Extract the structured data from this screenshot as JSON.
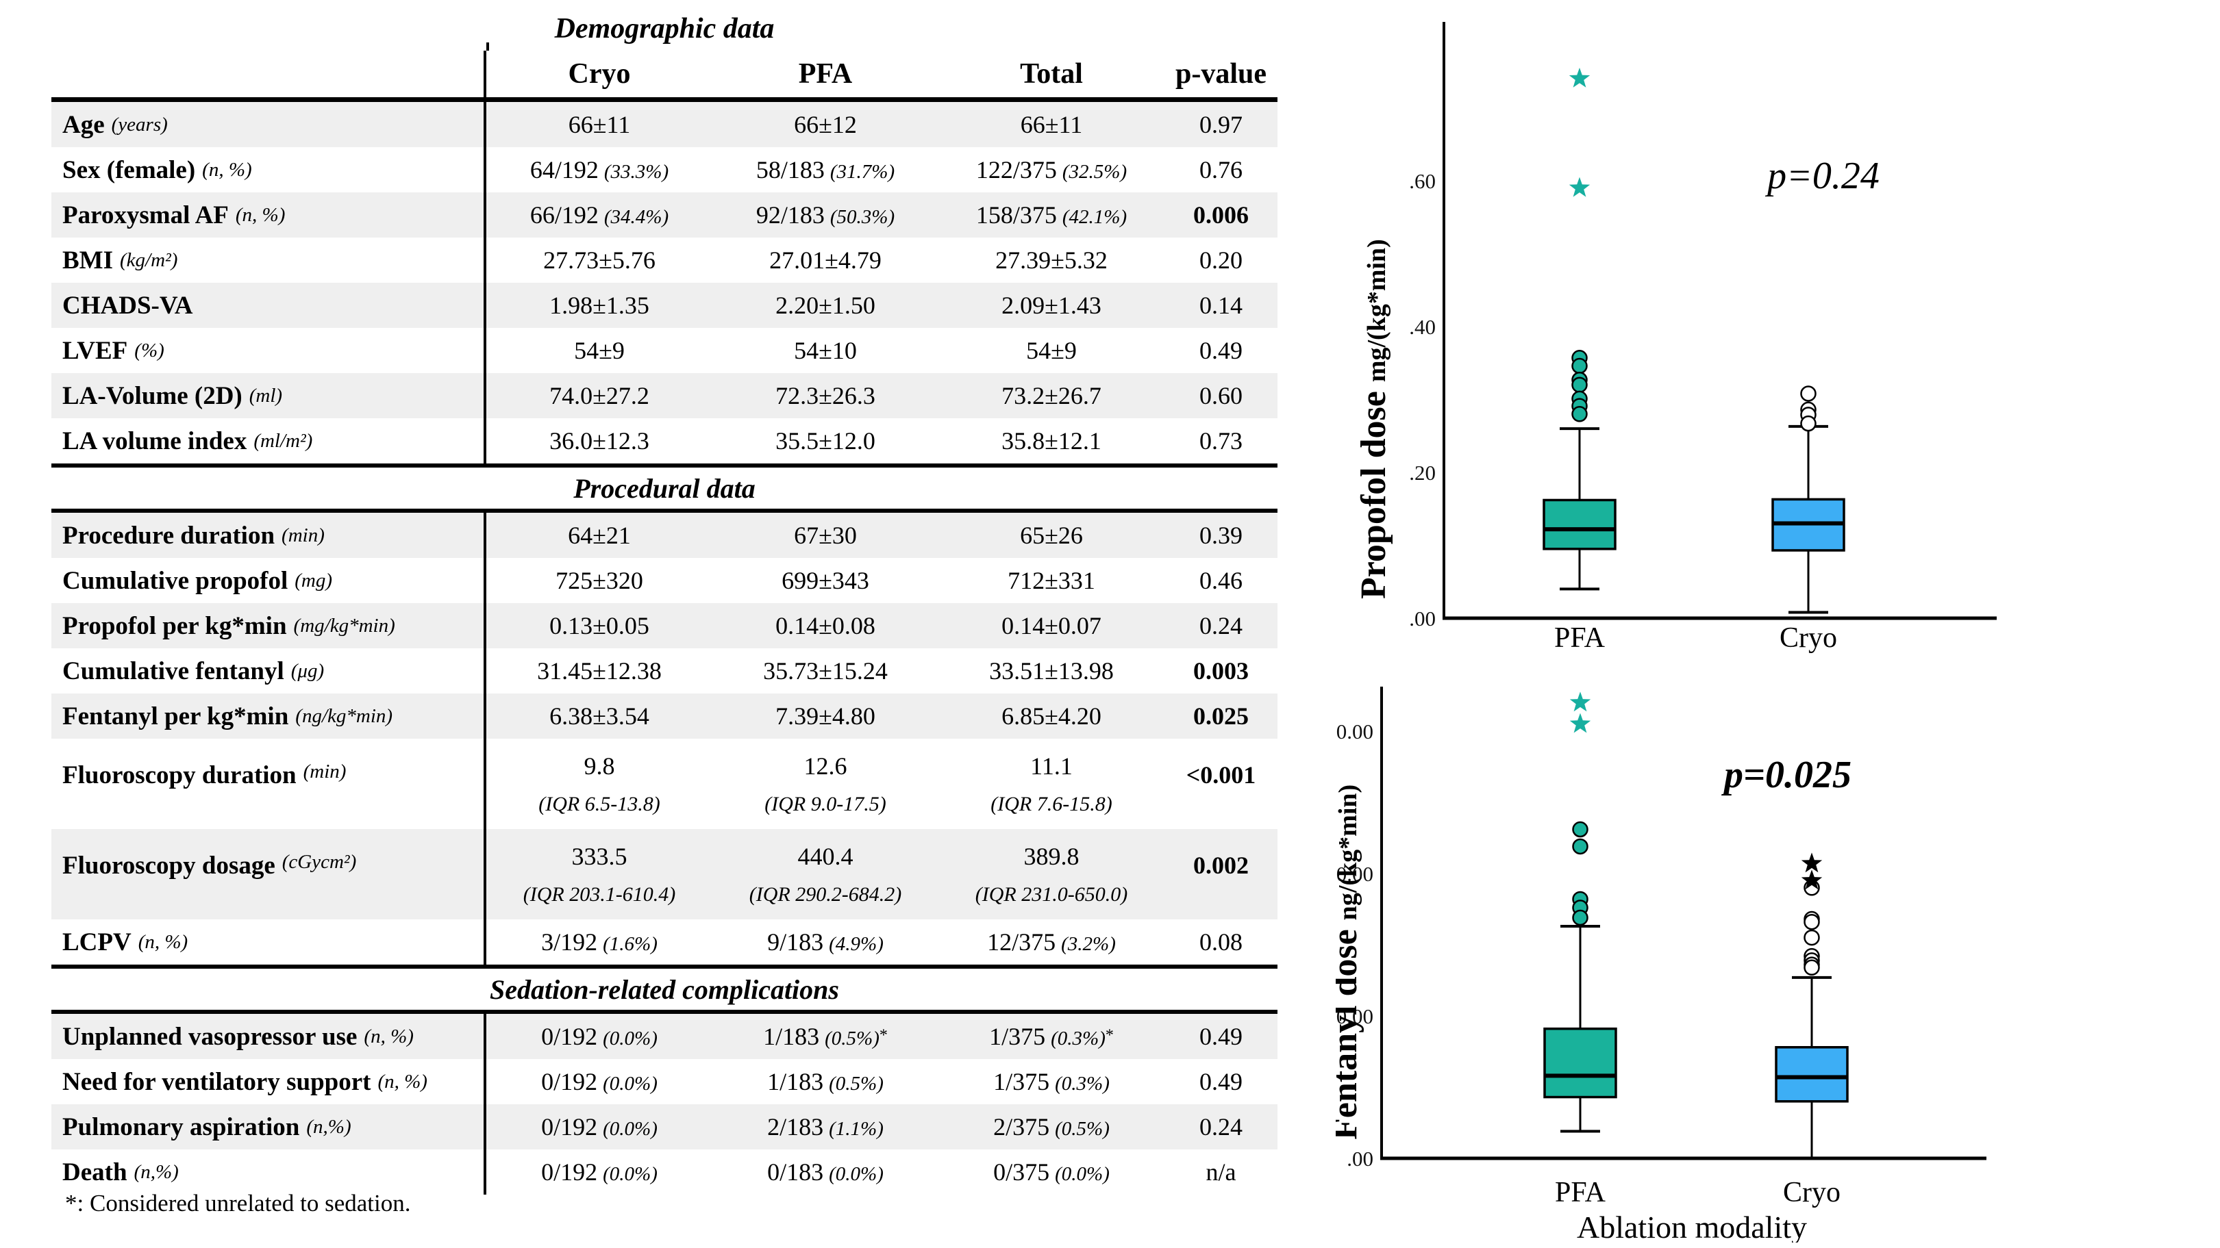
{
  "colors": {
    "teal": "#19B29B",
    "teal_star": "#17AFA0",
    "blue": "#3DAEF5",
    "stripe": "#EFEFEF",
    "axis": "#000000",
    "marker_stroke": "#000000"
  },
  "table": {
    "header": {
      "columns": [
        "Cryo",
        "PFA",
        "Total",
        "p-value"
      ]
    },
    "sections": [
      {
        "title": "Demographic data",
        "rows": [
          {
            "label": "Age",
            "unit": "(years)",
            "cells": [
              {
                "m": "66±11"
              },
              {
                "m": "66±12"
              },
              {
                "m": "66±11"
              }
            ],
            "p": "0.97",
            "bold": false
          },
          {
            "label": "Sex (female)",
            "unit": "(n, %)",
            "cells": [
              {
                "m": "64/192",
                "n": "(33.3%)"
              },
              {
                "m": "58/183",
                "n": "(31.7%)"
              },
              {
                "m": "122/375",
                "n": "(32.5%)"
              }
            ],
            "p": "0.76",
            "bold": false
          },
          {
            "label": "Paroxysmal AF",
            "unit": "(n, %)",
            "cells": [
              {
                "m": "66/192",
                "n": "(34.4%)"
              },
              {
                "m": "92/183",
                "n": "(50.3%)"
              },
              {
                "m": "158/375",
                "n": "(42.1%)"
              }
            ],
            "p": "0.006",
            "bold": true
          },
          {
            "label": "BMI",
            "unit": "(kg/m²)",
            "cells": [
              {
                "m": "27.73±5.76"
              },
              {
                "m": "27.01±4.79"
              },
              {
                "m": "27.39±5.32"
              }
            ],
            "p": "0.20",
            "bold": false
          },
          {
            "label": "CHADS-VA",
            "unit": "",
            "cells": [
              {
                "m": "1.98±1.35"
              },
              {
                "m": "2.20±1.50"
              },
              {
                "m": "2.09±1.43"
              }
            ],
            "p": "0.14",
            "bold": false
          },
          {
            "label": "LVEF",
            "unit": "(%)",
            "cells": [
              {
                "m": "54±9"
              },
              {
                "m": "54±10"
              },
              {
                "m": "54±9"
              }
            ],
            "p": "0.49",
            "bold": false
          },
          {
            "label": "LA-Volume (2D)",
            "unit": "(ml)",
            "cells": [
              {
                "m": "74.0±27.2"
              },
              {
                "m": "72.3±26.3"
              },
              {
                "m": "73.2±26.7"
              }
            ],
            "p": "0.60",
            "bold": false
          },
          {
            "label": "LA volume index",
            "unit": "(ml/m²)",
            "cells": [
              {
                "m": "36.0±12.3"
              },
              {
                "m": "35.5±12.0"
              },
              {
                "m": "35.8±12.1"
              }
            ],
            "p": "0.73",
            "bold": false
          }
        ]
      },
      {
        "title": "Procedural data",
        "rows": [
          {
            "label": "Procedure duration",
            "unit": "(min)",
            "cells": [
              {
                "m": "64±21"
              },
              {
                "m": "67±30"
              },
              {
                "m": "65±26"
              }
            ],
            "p": "0.39",
            "bold": false
          },
          {
            "label": "Cumulative propofol",
            "unit": "(mg)",
            "cells": [
              {
                "m": "725±320"
              },
              {
                "m": "699±343"
              },
              {
                "m": "712±331"
              }
            ],
            "p": "0.46",
            "bold": false
          },
          {
            "label": "Propofol per kg*min",
            "unit": "(mg/kg*min)",
            "cells": [
              {
                "m": "0.13±0.05"
              },
              {
                "m": "0.14±0.08"
              },
              {
                "m": "0.14±0.07"
              }
            ],
            "p": "0.24",
            "bold": false
          },
          {
            "label": "Cumulative fentanyl",
            "unit": "(μg)",
            "cells": [
              {
                "m": "31.45±12.38"
              },
              {
                "m": "35.73±15.24"
              },
              {
                "m": "33.51±13.98"
              }
            ],
            "p": "0.003",
            "bold": true
          },
          {
            "label": "Fentanyl per kg*min",
            "unit": "(ng/kg*min)",
            "cells": [
              {
                "m": "6.38±3.54"
              },
              {
                "m": "7.39±4.80"
              },
              {
                "m": "6.85±4.20"
              }
            ],
            "p": "0.025",
            "bold": true
          },
          {
            "label": "Fluoroscopy duration",
            "unit": "(min)",
            "tall": true,
            "cells": [
              {
                "m": "9.8",
                "s": "(IQR 6.5-13.8)"
              },
              {
                "m": "12.6",
                "s": "(IQR 9.0-17.5)"
              },
              {
                "m": "11.1",
                "s": "(IQR 7.6-15.8)"
              }
            ],
            "p": "<0.001",
            "bold": true
          },
          {
            "label": "Fluoroscopy dosage",
            "unit": "(cGycm²)",
            "tall": true,
            "cells": [
              {
                "m": "333.5",
                "s": "(IQR 203.1-610.4)"
              },
              {
                "m": "440.4",
                "s": "(IQR 290.2-684.2)"
              },
              {
                "m": "389.8",
                "s": "(IQR 231.0-650.0)"
              }
            ],
            "p": "0.002",
            "bold": true
          },
          {
            "label": "LCPV",
            "unit": "(n, %)",
            "cells": [
              {
                "m": "3/192",
                "n": "(1.6%)"
              },
              {
                "m": "9/183",
                "n": "(4.9%)"
              },
              {
                "m": "12/375",
                "n": "(3.2%)"
              }
            ],
            "p": "0.08",
            "bold": false
          }
        ]
      },
      {
        "title": "Sedation-related complications",
        "rows": [
          {
            "label": "Unplanned vasopressor use",
            "unit": "(n, %)",
            "cells": [
              {
                "m": "0/192",
                "n": "(0.0%)"
              },
              {
                "m": "1/183",
                "n": "(0.5%)",
                "sup": "*"
              },
              {
                "m": "1/375",
                "n": "(0.3%)",
                "sup": "*"
              }
            ],
            "p": "0.49",
            "bold": false
          },
          {
            "label": "Need for ventilatory support",
            "unit": "(n, %)",
            "cells": [
              {
                "m": "0/192",
                "n": "(0.0%)"
              },
              {
                "m": "1/183",
                "n": "(0.5%)"
              },
              {
                "m": "1/375",
                "n": "(0.3%)"
              }
            ],
            "p": "0.49",
            "bold": false
          },
          {
            "label": "Pulmonary aspiration",
            "unit": "(n,%)",
            "cells": [
              {
                "m": "0/192",
                "n": "(0.0%)"
              },
              {
                "m": "2/183",
                "n": "(1.1%)"
              },
              {
                "m": "2/375",
                "n": "(0.5%)"
              }
            ],
            "p": "0.24",
            "bold": false
          },
          {
            "label": "Death",
            "unit": "(n,%)",
            "cells": [
              {
                "m": "0/192",
                "n": "(0.0%)"
              },
              {
                "m": "0/183",
                "n": "(0.0%)"
              },
              {
                "m": "0/375",
                "n": "(0.0%)"
              }
            ],
            "p": "n/a",
            "bold": false
          }
        ]
      }
    ],
    "footnote": "*: Considered unrelated to sedation."
  },
  "chart_data": [
    {
      "type": "box",
      "id": "propofol",
      "axis_title": "Propofol dose",
      "axis_unit": "mg/(kg*min)",
      "annotation": "p=0.24",
      "annotation_bold": false,
      "xlabel": "",
      "categories": [
        "PFA",
        "Cryo"
      ],
      "ytick_labels": [
        ".00",
        ".20",
        ".40",
        ".60"
      ],
      "ytick_values": [
        0,
        0.2,
        0.4,
        0.6
      ],
      "ylim": [
        0,
        0.8
      ],
      "series": [
        {
          "name": "PFA",
          "color": "#19B29B",
          "q1": 0.095,
          "median": 0.122,
          "q3": 0.162,
          "whisker_low": 0.04,
          "whisker_high": 0.26,
          "cap_low": true,
          "outliers": [
            0.357,
            0.346,
            0.327,
            0.32,
            0.301,
            0.291,
            0.28
          ],
          "outlier_style": "filled",
          "extremes": [
            0.74,
            0.59
          ],
          "extreme_color": "#17AFA0"
        },
        {
          "name": "Cryo",
          "color": "#3DAEF5",
          "q1": 0.093,
          "median": 0.13,
          "q3": 0.163,
          "whisker_low": 0.008,
          "whisker_high": 0.263,
          "cap_low": true,
          "outliers": [
            0.308,
            0.286,
            0.279,
            0.267
          ],
          "outlier_style": "open",
          "extremes": [],
          "extreme_color": "#000000"
        }
      ]
    },
    {
      "type": "box",
      "id": "fentanyl",
      "axis_title": "Fentanyl dose",
      "axis_unit": "ng/(kg*min)",
      "annotation": "p=0.025",
      "annotation_bold": true,
      "xlabel": "Ablation modality",
      "categories": [
        "PFA",
        "Cryo"
      ],
      "ytick_labels": [
        ".00",
        "10.00",
        "20.00",
        "30.00"
      ],
      "ytick_values": [
        0,
        10,
        20,
        30
      ],
      "ylim": [
        0,
        33.5
      ],
      "series": [
        {
          "name": "PFA",
          "color": "#19B29B",
          "q1": 4.3,
          "median": 5.8,
          "q3": 9.1,
          "whisker_low": 1.9,
          "whisker_high": 16.3,
          "cap_low": true,
          "outliers": [
            23.1,
            21.9,
            18.2,
            17.6,
            16.9
          ],
          "outlier_style": "filled",
          "extremes": [
            32.0,
            30.5
          ],
          "extreme_color": "#17AFA0"
        },
        {
          "name": "Cryo",
          "color": "#3DAEF5",
          "q1": 4.0,
          "median": 5.7,
          "q3": 7.8,
          "whisker_low": 0.05,
          "whisker_high": 12.7,
          "cap_low": false,
          "outliers": [
            19.0,
            16.8,
            16.6,
            15.5,
            14.2,
            13.9,
            13.6,
            13.4
          ],
          "outlier_style": "open",
          "extremes": [
            20.7,
            19.5
          ],
          "extreme_color": "#000000"
        }
      ]
    }
  ]
}
